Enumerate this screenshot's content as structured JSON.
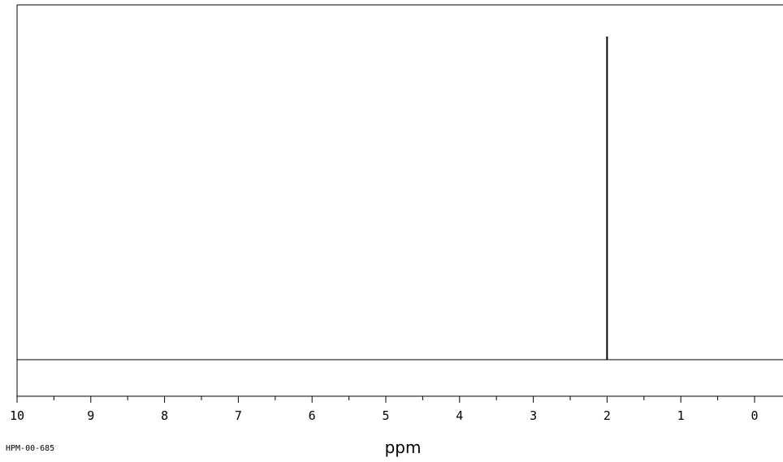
{
  "chart_data": {
    "type": "line",
    "title": "",
    "xlabel": "ppm",
    "ylabel": "",
    "xlim": [
      10,
      -0.4
    ],
    "x_reversed": true,
    "ylim": [
      0,
      1
    ],
    "baseline": 0,
    "x_ticks": [
      10,
      9,
      8,
      7,
      6,
      5,
      4,
      3,
      2,
      1,
      0
    ],
    "x_tick_labels": [
      "10",
      "9",
      "8",
      "7",
      "6",
      "5",
      "4",
      "3",
      "2",
      "1",
      "0"
    ],
    "x_minor_step": 0.5,
    "peaks": [
      {
        "x": 2.0,
        "y": 1.0
      }
    ],
    "grid": false,
    "legend": "none"
  },
  "spectrum_id": "HPM-00-685",
  "colors": {
    "line": "#000000",
    "background": "#ffffff"
  }
}
